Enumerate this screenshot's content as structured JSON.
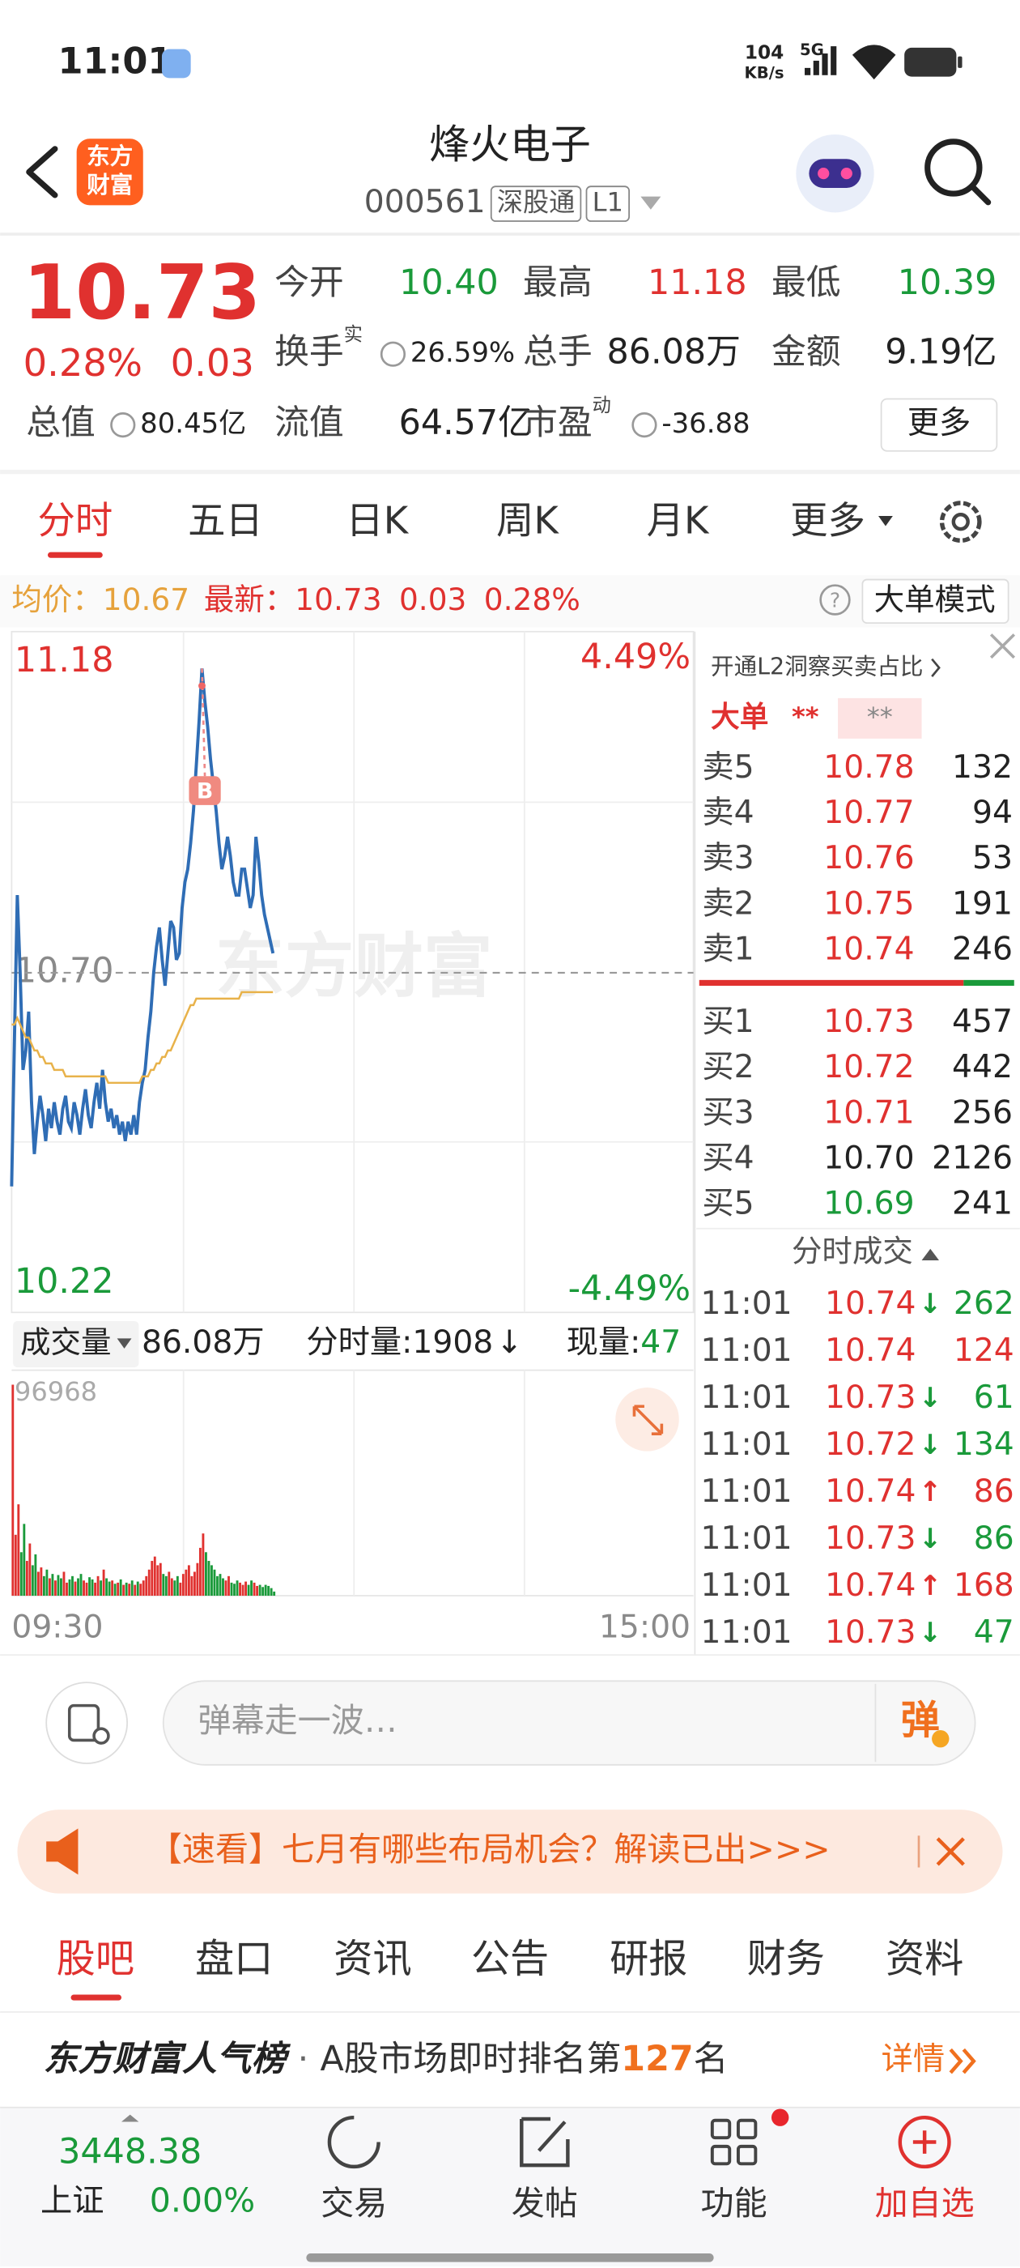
{
  "status_bar": {
    "time": "11:01",
    "net_speed": "104",
    "net_unit": "KB/s",
    "signal": "5G"
  },
  "header": {
    "logo": [
      "东方",
      "财富"
    ],
    "title": "烽火电子",
    "code": "000561",
    "tag1": "深股通",
    "tag2": "L1"
  },
  "quote": {
    "price": "10.73",
    "change_pct": "0.28%",
    "change": "0.03",
    "more": "更多",
    "fields": [
      {
        "label": "今开",
        "value": "10.40"
      },
      {
        "label": "最高",
        "value": "11.18"
      },
      {
        "label": "最低",
        "value": "10.39"
      },
      {
        "label": "换手",
        "sup": "实",
        "value": "26.59%"
      },
      {
        "label": "总手",
        "value": "86.08万"
      },
      {
        "label": "金额",
        "value": "9.19亿"
      },
      {
        "label": "总值",
        "value": "80.45亿"
      },
      {
        "label": "流值",
        "value": "64.57亿"
      },
      {
        "label": "市盈",
        "sup": "动",
        "value": "-36.88"
      }
    ]
  },
  "tabs": [
    "分时",
    "五日",
    "日K",
    "周K",
    "月K",
    "更多"
  ],
  "info_bar": {
    "avg_label": "均价：",
    "avg": "10.67",
    "last_label": "最新：",
    "last": "10.73",
    "change": "0.03",
    "pct": "0.28%",
    "help": "?",
    "mode": "大单模式"
  },
  "chart_data": {
    "type": "line",
    "ylim": [
      10.22,
      11.18
    ],
    "yticks": [
      10.22,
      {
        "value": 10.7,
        "label": "10.70"
      },
      11.18
    ],
    "pct_labels": [
      "4.49%",
      "-4.49%"
    ],
    "xticks": [
      "09:30",
      "15:00"
    ],
    "watermark": "东方财富",
    "marker": "B",
    "series": [
      {
        "color": "#2f6db5",
        "values": [
          10.37,
          10.6,
          10.82,
          10.7,
          10.55,
          10.58,
          10.64,
          10.5,
          10.42,
          10.47,
          10.51,
          10.48,
          10.44,
          10.49,
          10.46,
          10.5,
          10.47,
          10.45,
          10.49,
          10.51,
          10.47,
          10.46,
          10.5,
          10.48,
          10.45,
          10.49,
          10.52,
          10.48,
          10.46,
          10.5,
          10.53,
          10.49,
          10.55,
          10.5,
          10.47,
          10.49,
          10.46,
          10.48,
          10.45,
          10.47,
          10.44,
          10.47,
          10.45,
          10.48,
          10.45,
          10.5,
          10.53,
          10.55,
          10.6,
          10.64,
          10.7,
          10.74,
          10.77,
          10.72,
          10.68,
          10.73,
          10.78,
          10.77,
          10.72,
          10.73,
          10.8,
          10.84,
          10.86,
          10.9,
          10.95,
          11.02,
          11.09,
          11.17,
          11.12,
          11.08,
          11.03,
          10.99,
          10.95,
          10.9,
          10.86,
          10.88,
          10.91,
          10.88,
          10.84,
          10.82,
          10.82,
          10.86,
          10.86,
          10.83,
          10.8,
          10.82,
          10.91,
          10.87,
          10.82,
          10.79,
          10.77,
          10.75,
          10.73
        ]
      },
      {
        "color": "#e8b24a",
        "values": [
          10.62,
          10.62,
          10.63,
          10.62,
          10.61,
          10.6,
          10.6,
          10.59,
          10.58,
          10.58,
          10.57,
          10.57,
          10.56,
          10.56,
          10.56,
          10.55,
          10.55,
          10.55,
          10.55,
          10.54,
          10.54,
          10.54,
          10.54,
          10.54,
          10.54,
          10.54,
          10.54,
          10.54,
          10.54,
          10.54,
          10.54,
          10.54,
          10.54,
          10.54,
          10.53,
          10.53,
          10.53,
          10.53,
          10.53,
          10.53,
          10.53,
          10.53,
          10.53,
          10.53,
          10.53,
          10.53,
          10.54,
          10.54,
          10.54,
          10.55,
          10.55,
          10.56,
          10.56,
          10.57,
          10.57,
          10.58,
          10.58,
          10.59,
          10.6,
          10.61,
          10.62,
          10.63,
          10.64,
          10.65,
          10.65,
          10.66,
          10.66,
          10.66,
          10.66,
          10.66,
          10.66,
          10.66,
          10.66,
          10.66,
          10.66,
          10.66,
          10.66,
          10.66,
          10.66,
          10.66,
          10.66,
          10.67,
          10.67,
          10.67,
          10.67,
          10.67,
          10.67,
          10.67,
          10.67,
          10.67,
          10.67,
          10.67,
          10.67
        ]
      }
    ],
    "volume": {
      "type": "bar",
      "label": "成交量",
      "total": "86.08万",
      "minute_label": "分时量:",
      "minute": "1908",
      "minute_arrow": "↓",
      "current_label": "现量:",
      "current": "47",
      "ylim": [
        0,
        96968
      ],
      "yticks": [
        96968
      ],
      "up_color": "#e0312f",
      "down_color": "#1a9a3a",
      "values": [
        96968,
        28000,
        42000,
        20000,
        33000,
        16000,
        24000,
        14000,
        19000,
        11000,
        13000,
        9000,
        12000,
        8000,
        10000,
        7000,
        9500,
        8000,
        11000,
        6000,
        7500,
        9000,
        6500,
        8000,
        10000,
        7000,
        6000,
        8500,
        7500,
        6000,
        9000,
        7000,
        12000,
        8000,
        6500,
        7000,
        5500,
        6000,
        7500,
        5000,
        6000,
        5500,
        7000,
        5000,
        6500,
        5500,
        7000,
        9000,
        12000,
        16000,
        18000,
        14000,
        15000,
        10000,
        9000,
        11000,
        8000,
        7000,
        9000,
        6000,
        10000,
        12000,
        14000,
        9000,
        11000,
        15000,
        22000,
        28600,
        20000,
        16000,
        14000,
        12000,
        9000,
        10000,
        8000,
        7000,
        9000,
        6000,
        5500,
        7000,
        6000,
        5000,
        6500,
        5000,
        7000,
        6000,
        4500,
        5000,
        4000,
        5000,
        4500,
        3500,
        1908
      ]
    }
  },
  "order_book": {
    "l2": "开通L2洞察买卖占比",
    "big": "大单",
    "big_v1": "**",
    "big_v2": "**",
    "asks": [
      {
        "label": "卖5",
        "price": "10.78",
        "vol": "132"
      },
      {
        "label": "卖4",
        "price": "10.77",
        "vol": "94"
      },
      {
        "label": "卖3",
        "price": "10.76",
        "vol": "53"
      },
      {
        "label": "卖2",
        "price": "10.75",
        "vol": "191"
      },
      {
        "label": "卖1",
        "price": "10.74",
        "vol": "246"
      }
    ],
    "bids": [
      {
        "label": "买1",
        "price": "10.73",
        "vol": "457"
      },
      {
        "label": "买2",
        "price": "10.72",
        "vol": "442"
      },
      {
        "label": "买3",
        "price": "10.71",
        "vol": "256"
      },
      {
        "label": "买4",
        "price": "10.70",
        "vol": "2126"
      },
      {
        "label": "买5",
        "price": "10.69",
        "vol": "241"
      }
    ]
  },
  "trades": {
    "title": "分时成交",
    "rows": [
      {
        "time": "11:01",
        "price": "10.74",
        "dir": "↓",
        "vol": "262"
      },
      {
        "time": "11:01",
        "price": "10.74",
        "vol": "124"
      },
      {
        "time": "11:01",
        "price": "10.73",
        "dir": "↓",
        "vol": "61"
      },
      {
        "time": "11:01",
        "price": "10.72",
        "dir": "↓",
        "vol": "134"
      },
      {
        "time": "11:01",
        "price": "10.74",
        "dir": "↑",
        "vol": "86"
      },
      {
        "time": "11:01",
        "price": "10.73",
        "dir": "↓",
        "vol": "86"
      },
      {
        "time": "11:01",
        "price": "10.74",
        "dir": "↑",
        "vol": "168"
      },
      {
        "time": "11:01",
        "price": "10.73",
        "dir": "↓",
        "vol": "47"
      }
    ]
  },
  "comment_bar": {
    "placeholder": "弹幕走一波…",
    "button": "弹"
  },
  "banner": {
    "text": "【速看】七月有哪些布局机会？解读已出>>>"
  },
  "sub_tabs": [
    "股吧",
    "盘口",
    "资讯",
    "公告",
    "研报",
    "财务",
    "资料"
  ],
  "ranking": {
    "brand": "东方财富人气榜",
    "dot": "·",
    "text": "A股市场即时排名第",
    "rank": "127",
    "suffix": "名",
    "link": "详情"
  },
  "footer": {
    "index_value": "3448.38",
    "index_name": "上证",
    "index_change": "0.00%",
    "items": [
      "交易",
      "发帖",
      "功能",
      "加自选"
    ]
  }
}
